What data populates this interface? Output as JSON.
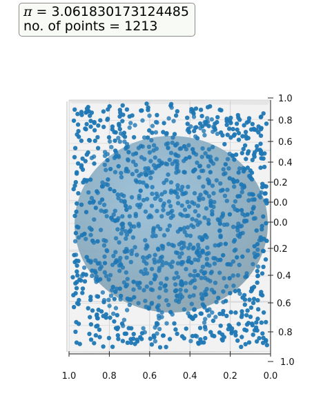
{
  "info": {
    "pi_symbol": "π",
    "pi_eq": " = ",
    "pi_value": "3.061830173124485",
    "points_label": "no. of points = 1213"
  },
  "chart_data": {
    "type": "scatter",
    "projection": "3d",
    "n_points": 1213,
    "pi_estimate": 3.061830173124485,
    "xlim": [
      0.0,
      1.0
    ],
    "ylim": [
      0.0,
      1.0
    ],
    "zlim": [
      0.0,
      1.0
    ],
    "x_ticks": [
      "1.0",
      "0.8",
      "0.6",
      "0.4",
      "0.2",
      "0.0"
    ],
    "right_ticks": [
      "1.0",
      "0.8",
      "0.6",
      "0.4",
      "0.2",
      "0.0",
      "0.0",
      "0.2",
      "0.4",
      "0.6",
      "0.8",
      "1.0"
    ],
    "grid": true,
    "point_color": "#1f77b4",
    "sphere_color": "#7fb3cf",
    "sphere_center": [
      0.5,
      0.5,
      0.5
    ],
    "sphere_radius": 0.5
  }
}
